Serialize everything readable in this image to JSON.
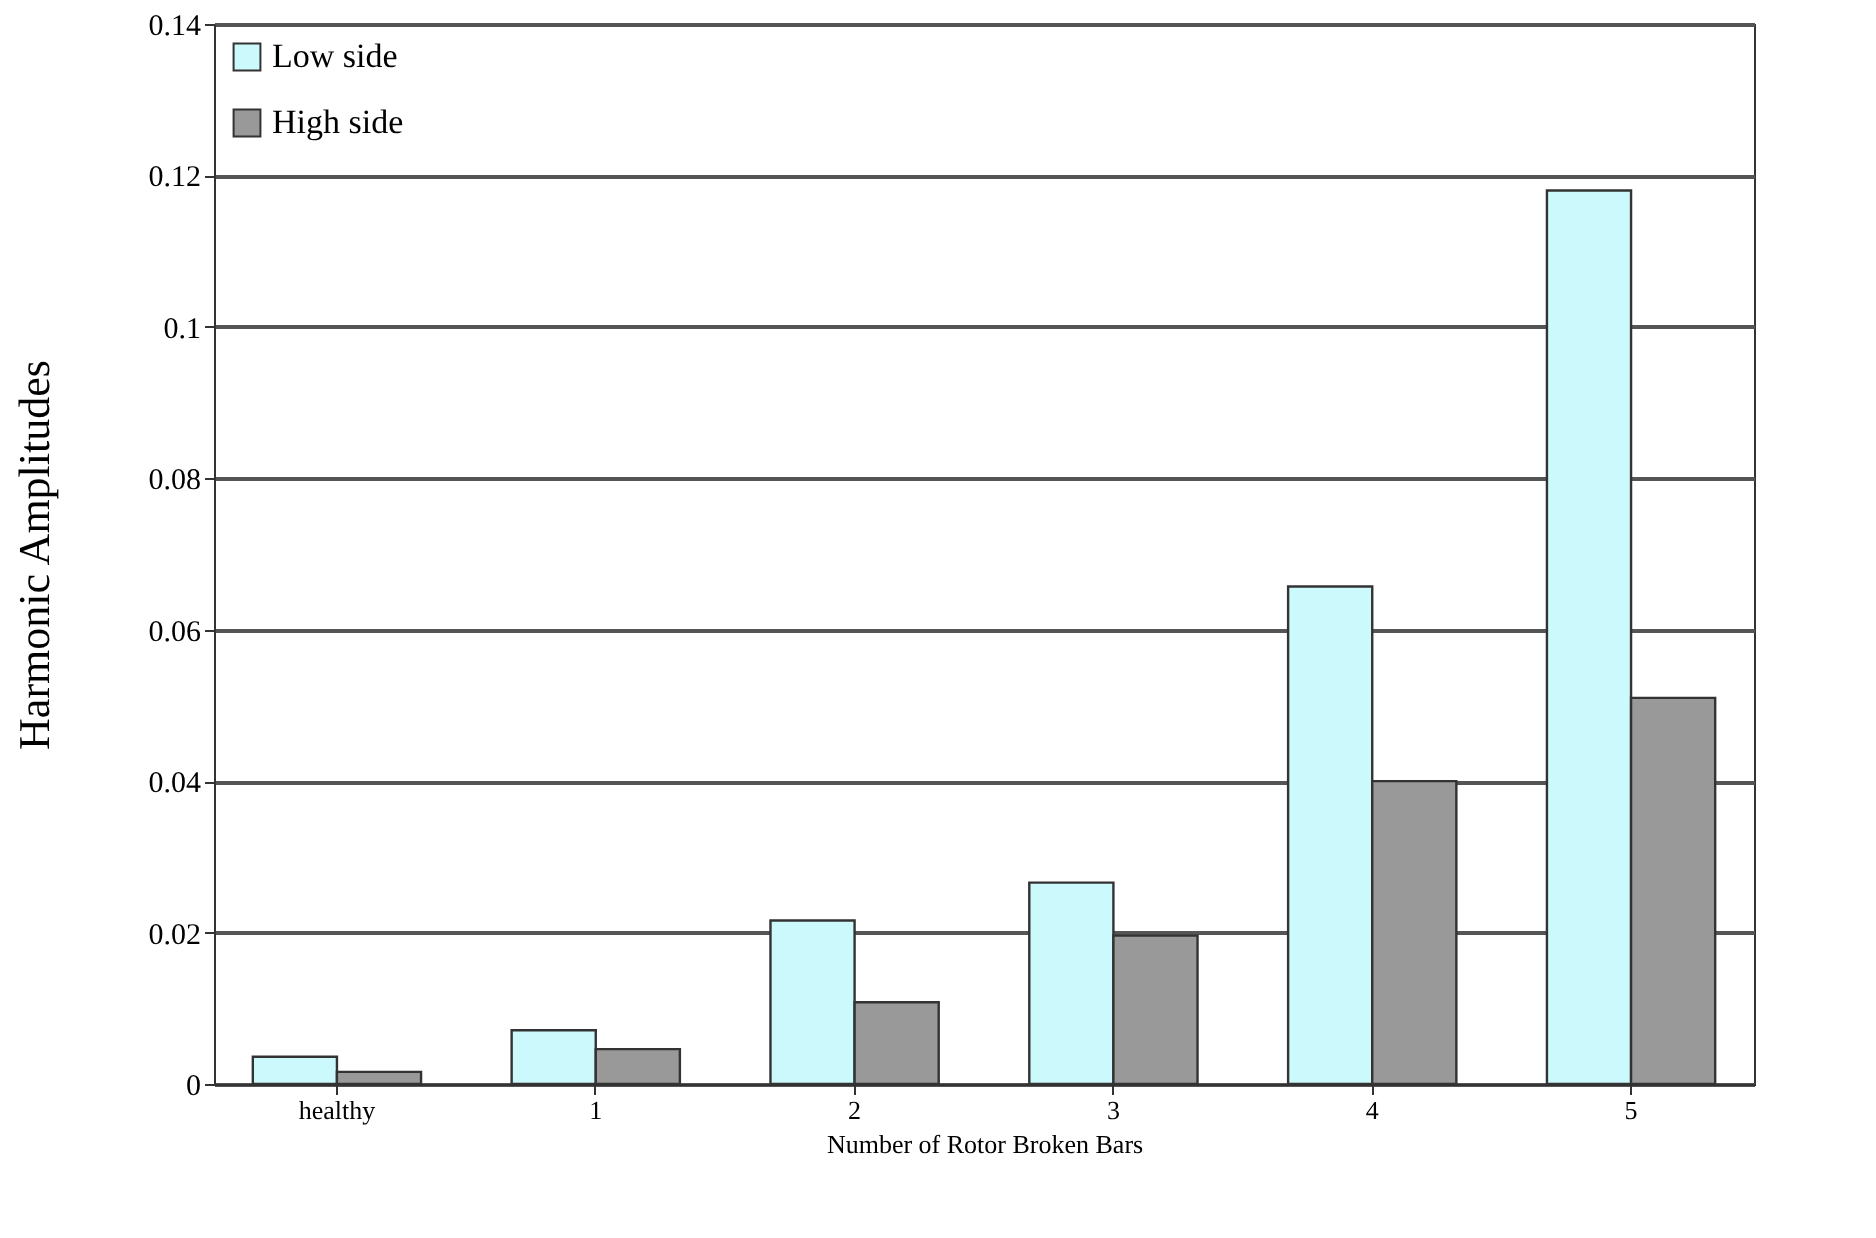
{
  "chart_data": {
    "type": "bar",
    "xlabel": "Number of Rotor Broken Bars",
    "ylabel": "Harmonic Amplitudes",
    "categories": [
      "healthy",
      "1",
      "2",
      "3",
      "4",
      "5"
    ],
    "series": [
      {
        "name": "Low side",
        "color": "#ccfafc",
        "values": [
          0.0036,
          0.0071,
          0.0216,
          0.0266,
          0.0657,
          0.118
        ]
      },
      {
        "name": "High side",
        "color": "#999999",
        "values": [
          0.0016,
          0.0046,
          0.0108,
          0.0196,
          0.04,
          0.051
        ]
      }
    ],
    "ylim": [
      0,
      0.14
    ],
    "yticks": [
      0,
      0.02,
      0.04,
      0.06,
      0.08,
      0.1,
      0.12,
      0.14
    ],
    "grid": "y",
    "legend": "top left"
  }
}
